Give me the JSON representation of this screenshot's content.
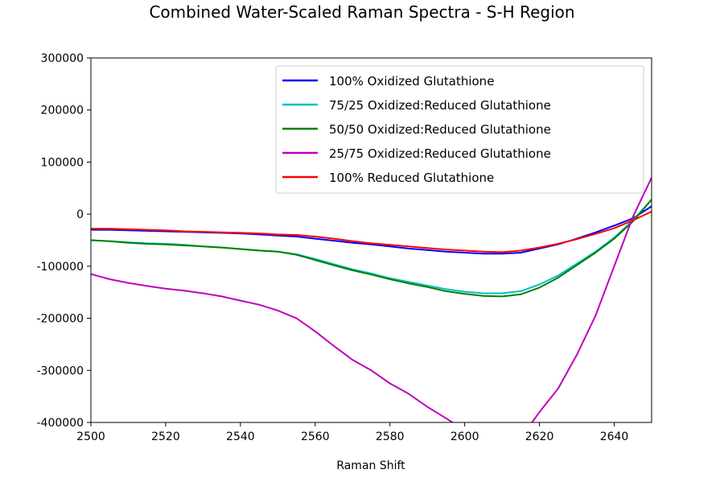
{
  "chart_data": {
    "type": "line",
    "title": "Combined Water-Scaled Raman Spectra - S-H Region",
    "xlabel": "Raman Shift",
    "ylabel": "",
    "xlim": [
      2500,
      2650
    ],
    "ylim": [
      -400000,
      300000
    ],
    "x_ticks": [
      2500,
      2520,
      2540,
      2560,
      2580,
      2600,
      2620,
      2640
    ],
    "y_ticks": [
      300000,
      200000,
      100000,
      0,
      -100000,
      -200000,
      -300000,
      -400000
    ],
    "grid": false,
    "legend_position": "top-right",
    "series": [
      {
        "name": "100% Oxidized Glutathione",
        "color": "#0000ff",
        "points": [
          [
            2500,
            -30000
          ],
          [
            2505,
            -30000
          ],
          [
            2510,
            -31000
          ],
          [
            2515,
            -32000
          ],
          [
            2520,
            -33000
          ],
          [
            2525,
            -34000
          ],
          [
            2530,
            -35000
          ],
          [
            2535,
            -36000
          ],
          [
            2540,
            -37000
          ],
          [
            2545,
            -39000
          ],
          [
            2550,
            -41000
          ],
          [
            2555,
            -43000
          ],
          [
            2560,
            -47000
          ],
          [
            2565,
            -51000
          ],
          [
            2570,
            -55000
          ],
          [
            2575,
            -58000
          ],
          [
            2580,
            -62000
          ],
          [
            2585,
            -66000
          ],
          [
            2590,
            -69000
          ],
          [
            2595,
            -72000
          ],
          [
            2600,
            -74000
          ],
          [
            2605,
            -76000
          ],
          [
            2610,
            -76000
          ],
          [
            2615,
            -74000
          ],
          [
            2620,
            -66000
          ],
          [
            2625,
            -58000
          ],
          [
            2630,
            -47000
          ],
          [
            2635,
            -35000
          ],
          [
            2640,
            -22000
          ],
          [
            2645,
            -8000
          ],
          [
            2650,
            15000
          ]
        ]
      },
      {
        "name": "75/25 Oxidized:Reduced Glutathione",
        "color": "#00bfbf",
        "points": [
          [
            2500,
            -50000
          ],
          [
            2505,
            -52000
          ],
          [
            2510,
            -54000
          ],
          [
            2515,
            -56000
          ],
          [
            2520,
            -57000
          ],
          [
            2525,
            -59000
          ],
          [
            2530,
            -62000
          ],
          [
            2535,
            -64000
          ],
          [
            2540,
            -67000
          ],
          [
            2545,
            -70000
          ],
          [
            2550,
            -72000
          ],
          [
            2555,
            -77000
          ],
          [
            2560,
            -86000
          ],
          [
            2565,
            -96000
          ],
          [
            2570,
            -106000
          ],
          [
            2575,
            -114000
          ],
          [
            2580,
            -123000
          ],
          [
            2585,
            -130000
          ],
          [
            2590,
            -137000
          ],
          [
            2595,
            -144000
          ],
          [
            2600,
            -149000
          ],
          [
            2605,
            -152000
          ],
          [
            2610,
            -152000
          ],
          [
            2615,
            -148000
          ],
          [
            2620,
            -135000
          ],
          [
            2625,
            -118000
          ],
          [
            2630,
            -95000
          ],
          [
            2635,
            -72000
          ],
          [
            2640,
            -45000
          ],
          [
            2645,
            -12000
          ],
          [
            2650,
            28000
          ]
        ]
      },
      {
        "name": "50/50 Oxidized:Reduced Glutathione",
        "color": "#008000",
        "points": [
          [
            2500,
            -50000
          ],
          [
            2505,
            -52000
          ],
          [
            2510,
            -55000
          ],
          [
            2515,
            -57000
          ],
          [
            2520,
            -58000
          ],
          [
            2525,
            -60000
          ],
          [
            2530,
            -62000
          ],
          [
            2535,
            -64000
          ],
          [
            2540,
            -67000
          ],
          [
            2545,
            -70000
          ],
          [
            2550,
            -72000
          ],
          [
            2555,
            -78000
          ],
          [
            2560,
            -88000
          ],
          [
            2565,
            -98000
          ],
          [
            2570,
            -108000
          ],
          [
            2575,
            -116000
          ],
          [
            2580,
            -125000
          ],
          [
            2585,
            -133000
          ],
          [
            2590,
            -140000
          ],
          [
            2595,
            -148000
          ],
          [
            2600,
            -153000
          ],
          [
            2605,
            -157000
          ],
          [
            2610,
            -158000
          ],
          [
            2615,
            -154000
          ],
          [
            2620,
            -141000
          ],
          [
            2625,
            -122000
          ],
          [
            2630,
            -98000
          ],
          [
            2635,
            -74000
          ],
          [
            2640,
            -47000
          ],
          [
            2645,
            -14000
          ],
          [
            2650,
            28000
          ]
        ]
      },
      {
        "name": "25/75 Oxidized:Reduced Glutathione",
        "color": "#bf00bf",
        "points": [
          [
            2500,
            -115000
          ],
          [
            2505,
            -125000
          ],
          [
            2510,
            -132000
          ],
          [
            2515,
            -138000
          ],
          [
            2520,
            -143000
          ],
          [
            2525,
            -147000
          ],
          [
            2530,
            -152000
          ],
          [
            2535,
            -158000
          ],
          [
            2540,
            -166000
          ],
          [
            2545,
            -174000
          ],
          [
            2550,
            -185000
          ],
          [
            2555,
            -200000
          ],
          [
            2560,
            -225000
          ],
          [
            2565,
            -253000
          ],
          [
            2570,
            -280000
          ],
          [
            2575,
            -300000
          ],
          [
            2580,
            -325000
          ],
          [
            2585,
            -345000
          ],
          [
            2590,
            -370000
          ],
          [
            2595,
            -392000
          ],
          [
            2600,
            -415000
          ],
          [
            2605,
            -440000
          ],
          [
            2610,
            -450000
          ],
          [
            2615,
            -430000
          ],
          [
            2620,
            -380000
          ],
          [
            2625,
            -335000
          ],
          [
            2630,
            -270000
          ],
          [
            2635,
            -195000
          ],
          [
            2640,
            -100000
          ],
          [
            2645,
            -5000
          ],
          [
            2650,
            70000
          ]
        ]
      },
      {
        "name": "100% Reduced Glutathione",
        "color": "#ff0000",
        "points": [
          [
            2500,
            -28000
          ],
          [
            2505,
            -28000
          ],
          [
            2510,
            -29000
          ],
          [
            2515,
            -30000
          ],
          [
            2520,
            -31000
          ],
          [
            2525,
            -33000
          ],
          [
            2530,
            -34000
          ],
          [
            2535,
            -35000
          ],
          [
            2540,
            -36000
          ],
          [
            2545,
            -37000
          ],
          [
            2550,
            -39000
          ],
          [
            2555,
            -40000
          ],
          [
            2560,
            -43000
          ],
          [
            2565,
            -47000
          ],
          [
            2570,
            -52000
          ],
          [
            2575,
            -56000
          ],
          [
            2580,
            -59000
          ],
          [
            2585,
            -62000
          ],
          [
            2590,
            -65000
          ],
          [
            2595,
            -68000
          ],
          [
            2600,
            -70000
          ],
          [
            2605,
            -72000
          ],
          [
            2610,
            -73000
          ],
          [
            2615,
            -70000
          ],
          [
            2620,
            -64000
          ],
          [
            2625,
            -57000
          ],
          [
            2630,
            -48000
          ],
          [
            2635,
            -38000
          ],
          [
            2640,
            -27000
          ],
          [
            2645,
            -12000
          ],
          [
            2650,
            5000
          ]
        ]
      }
    ]
  }
}
